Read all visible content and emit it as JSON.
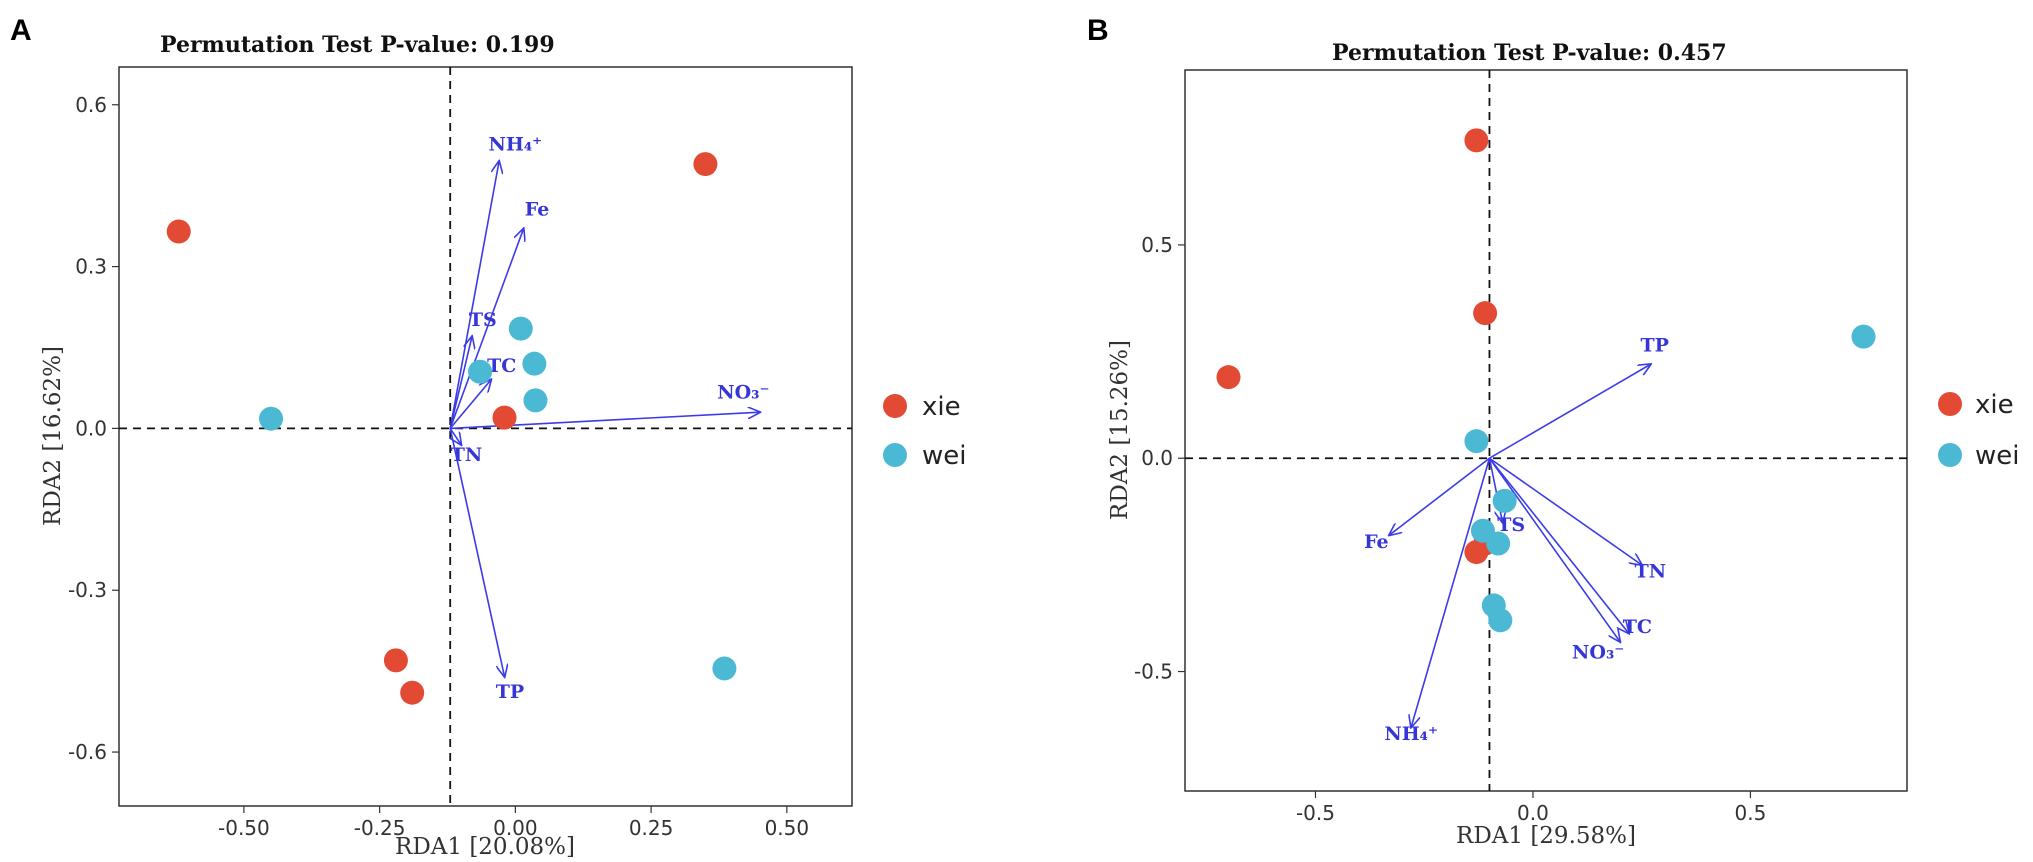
{
  "colors": {
    "xie": "#e34a33",
    "wei": "#4bb8d4",
    "arrow": "#3b3be8"
  },
  "legend": [
    {
      "label": "xie",
      "color": "#e34a33"
    },
    {
      "label": "wei",
      "color": "#4bb8d4"
    }
  ],
  "chart_data": [
    {
      "panel": "A",
      "type": "scatter",
      "title": "Permutation Test P-value: 0.199",
      "xlabel": "RDA1 [20.08%]",
      "ylabel": "RDA2 [16.62%]",
      "xlim": [
        -0.73,
        0.62
      ],
      "ylim": [
        -0.7,
        0.67
      ],
      "xticks": [
        {
          "value": -0.5,
          "label": "-0.50"
        },
        {
          "value": -0.25,
          "label": "-0.25"
        },
        {
          "value": 0.0,
          "label": "0.00"
        },
        {
          "value": 0.25,
          "label": "0.25"
        },
        {
          "value": 0.5,
          "label": "0.50"
        }
      ],
      "yticks": [
        {
          "value": 0.6,
          "label": "0.6"
        },
        {
          "value": 0.3,
          "label": "0.3"
        },
        {
          "value": 0.0,
          "label": "0.0"
        },
        {
          "value": -0.3,
          "label": "-0.3"
        },
        {
          "value": -0.6,
          "label": "-0.6"
        }
      ],
      "vline": -0.12,
      "hline": 0.0,
      "points": [
        {
          "group": "xie",
          "x": -0.62,
          "y": 0.365
        },
        {
          "group": "xie",
          "x": 0.35,
          "y": 0.49
        },
        {
          "group": "xie",
          "x": -0.02,
          "y": 0.02
        },
        {
          "group": "xie",
          "x": -0.22,
          "y": -0.43
        },
        {
          "group": "xie",
          "x": -0.19,
          "y": -0.49
        },
        {
          "group": "wei",
          "x": -0.45,
          "y": 0.018
        },
        {
          "group": "wei",
          "x": 0.01,
          "y": 0.185
        },
        {
          "group": "wei",
          "x": 0.035,
          "y": 0.12
        },
        {
          "group": "wei",
          "x": -0.065,
          "y": 0.105
        },
        {
          "group": "wei",
          "x": 0.037,
          "y": 0.052
        },
        {
          "group": "wei",
          "x": 0.385,
          "y": -0.445
        }
      ],
      "arrows": [
        {
          "label": "NH₄⁺",
          "x": -0.03,
          "y": 0.495,
          "lx": 0.0,
          "ly": 0.515
        },
        {
          "label": "Fe",
          "x": 0.015,
          "y": 0.37,
          "lx": 0.04,
          "ly": 0.395
        },
        {
          "label": "TS",
          "x": -0.08,
          "y": 0.17,
          "lx": -0.06,
          "ly": 0.19
        },
        {
          "label": "TC",
          "x": -0.045,
          "y": 0.09,
          "lx": -0.025,
          "ly": 0.105
        },
        {
          "label": "NO₃⁻",
          "x": 0.45,
          "y": 0.03,
          "lx": 0.42,
          "ly": 0.055
        },
        {
          "label": "TN",
          "x": -0.1,
          "y": -0.03,
          "lx": -0.09,
          "ly": -0.06
        },
        {
          "label": "TP",
          "x": -0.02,
          "y": -0.46,
          "lx": -0.01,
          "ly": -0.5
        }
      ]
    },
    {
      "panel": "B",
      "type": "scatter",
      "title": "Permutation Test P-value: 0.457",
      "xlabel": "RDA1 [29.58%]",
      "ylabel": "RDA2 [15.26%]",
      "xlim": [
        -0.8,
        0.86
      ],
      "ylim": [
        -0.78,
        0.91
      ],
      "xticks": [
        {
          "value": -0.5,
          "label": "-0.5"
        },
        {
          "value": 0.0,
          "label": "0.0"
        },
        {
          "value": 0.5,
          "label": "0.5"
        }
      ],
      "yticks": [
        {
          "value": 0.5,
          "label": "0.5"
        },
        {
          "value": 0.0,
          "label": "0.0"
        },
        {
          "value": -0.5,
          "label": "-0.5"
        }
      ],
      "vline": -0.1,
      "hline": 0.0,
      "points": [
        {
          "group": "xie",
          "x": -0.13,
          "y": 0.745
        },
        {
          "group": "xie",
          "x": -0.11,
          "y": 0.34
        },
        {
          "group": "xie",
          "x": -0.7,
          "y": 0.19
        },
        {
          "group": "xie",
          "x": -0.13,
          "y": -0.22
        },
        {
          "group": "xie",
          "x": -0.11,
          "y": -0.2
        },
        {
          "group": "wei",
          "x": 0.76,
          "y": 0.285
        },
        {
          "group": "wei",
          "x": -0.13,
          "y": 0.04
        },
        {
          "group": "wei",
          "x": -0.065,
          "y": -0.1
        },
        {
          "group": "wei",
          "x": -0.115,
          "y": -0.17
        },
        {
          "group": "wei",
          "x": -0.08,
          "y": -0.2
        },
        {
          "group": "wei",
          "x": -0.09,
          "y": -0.345
        },
        {
          "group": "wei",
          "x": -0.075,
          "y": -0.38
        }
      ],
      "arrows": [
        {
          "label": "TP",
          "x": 0.27,
          "y": 0.22,
          "lx": 0.28,
          "ly": 0.25
        },
        {
          "label": "Fe",
          "x": -0.33,
          "y": -0.18,
          "lx": -0.36,
          "ly": -0.21
        },
        {
          "label": "TS",
          "x": -0.07,
          "y": -0.15,
          "lx": -0.05,
          "ly": -0.17
        },
        {
          "label": "TN",
          "x": 0.25,
          "y": -0.25,
          "lx": 0.27,
          "ly": -0.28
        },
        {
          "label": "TC",
          "x": 0.22,
          "y": -0.41,
          "lx": 0.24,
          "ly": -0.41
        },
        {
          "label": "NO₃⁻",
          "x": 0.2,
          "y": -0.43,
          "lx": 0.15,
          "ly": -0.47
        },
        {
          "label": "NH₄⁺",
          "x": -0.28,
          "y": -0.63,
          "lx": -0.28,
          "ly": -0.66
        }
      ]
    }
  ]
}
